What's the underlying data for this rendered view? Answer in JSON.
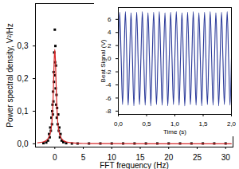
{
  "chart_data": [
    {
      "type": "scatter",
      "x_label": "FFT frequency (Hz)",
      "y_label": "Power spectral density, V²/Hz",
      "xlim": [
        -3.4,
        31.3
      ],
      "ylim": [
        -0.01,
        0.43
      ],
      "xticks": [
        0,
        5,
        10,
        15,
        20,
        25,
        30
      ],
      "yticks": [
        {
          "value": 0,
          "label": "0,0"
        },
        {
          "value": 0.1,
          "label": "0,1"
        },
        {
          "value": 0.2,
          "label": "0,2"
        },
        {
          "value": 0.3,
          "label": "0,3"
        }
      ],
      "series": [
        {
          "type": "scatter",
          "marker": "square",
          "color": "#000000",
          "x": [
            -2,
            -1.5,
            -1.2,
            -1.0,
            -0.9,
            -0.8,
            -0.7,
            -0.6,
            -0.5,
            -0.45,
            -0.4,
            -0.35,
            -0.3,
            -0.25,
            -0.2,
            -0.15,
            -0.1,
            -0.05,
            0,
            0.05,
            0.1,
            0.15,
            0.2,
            0.25,
            0.3,
            0.35,
            0.4,
            0.5,
            0.6,
            0.7,
            0.8,
            0.9,
            1.0,
            1.2,
            1.5,
            2,
            3,
            4,
            6,
            8,
            10,
            12,
            14,
            16,
            18,
            20,
            22,
            24,
            26,
            28,
            30
          ],
          "values": [
            0.002,
            0.004,
            0.01,
            0.03,
            0.02,
            0.05,
            0.04,
            0.08,
            0.06,
            0.1,
            0.12,
            0.09,
            0.16,
            0.13,
            0.22,
            0.19,
            0.28,
            0.21,
            0.35,
            0.25,
            0.3,
            0.17,
            0.24,
            0.12,
            0.15,
            0.08,
            0.11,
            0.06,
            0.09,
            0.04,
            0.05,
            0.02,
            0.03,
            0.01,
            0.005,
            0.002,
            0.001,
            0.001,
            0.001,
            0.001,
            0.001,
            0.001,
            0.001,
            0.001,
            0.001,
            0.001,
            0.001,
            0.001,
            0.001,
            0.001,
            0.001
          ]
        },
        {
          "type": "line",
          "color": "#d62728",
          "x": [
            -3,
            -2,
            -1.5,
            -1,
            -0.7,
            -0.5,
            -0.3,
            -0.2,
            -0.1,
            0,
            0.1,
            0.2,
            0.3,
            0.5,
            0.7,
            1,
            1.5,
            2,
            3,
            5,
            10,
            20,
            31
          ],
          "values": [
            0.003,
            0.006,
            0.01,
            0.022,
            0.04,
            0.07,
            0.14,
            0.2,
            0.26,
            0.29,
            0.26,
            0.2,
            0.14,
            0.07,
            0.04,
            0.022,
            0.01,
            0.006,
            0.003,
            0.001,
            0.0005,
            0.0002,
            0.0001
          ]
        }
      ]
    },
    {
      "type": "line",
      "x_label": "Time (s)",
      "y_label": "Beat Signal (V)",
      "xlim": [
        0,
        2
      ],
      "ylim": [
        -8.5,
        7.8
      ],
      "xticks": [
        {
          "value": 0,
          "label": "0,0"
        },
        {
          "value": 0.5,
          "label": "0,5"
        },
        {
          "value": 1,
          "label": "1,0"
        },
        {
          "value": 1.5,
          "label": "1,5"
        },
        {
          "value": 2,
          "label": "2,0"
        }
      ],
      "yticks": [
        -8,
        -6,
        -4,
        -2,
        0,
        2,
        4,
        6
      ],
      "series": [
        {
          "type": "line",
          "color": "#2b3a9a",
          "x": [
            0,
            0.025,
            0.05,
            0.075,
            0.1,
            0.125,
            0.15,
            0.175,
            0.2,
            0.225,
            0.25,
            0.275,
            0.3,
            0.325,
            0.35,
            0.375,
            0.4,
            0.425,
            0.45,
            0.475,
            0.5,
            0.525,
            0.55,
            0.575,
            0.6,
            0.625,
            0.65,
            0.675,
            0.7,
            0.725,
            0.75,
            0.775,
            0.8,
            0.825,
            0.85,
            0.875,
            0.9,
            0.925,
            0.95,
            0.975,
            1.0,
            1.025,
            1.05,
            1.075,
            1.1,
            1.125,
            1.15,
            1.175,
            1.2,
            1.225,
            1.25,
            1.275,
            1.3,
            1.325,
            1.35,
            1.375,
            1.4,
            1.425,
            1.45,
            1.475,
            1.5,
            1.525,
            1.55,
            1.575,
            1.6,
            1.625,
            1.65,
            1.675,
            1.7,
            1.725,
            1.75,
            1.775,
            1.8,
            1.825,
            1.85,
            1.875,
            1.9,
            1.925,
            1.95,
            1.975,
            2.0
          ],
          "values": [
            0.3,
            7.1,
            0.2,
            -7.0,
            -0.1,
            7.2,
            0.1,
            -7.1,
            0.2,
            7.0,
            0.0,
            -7.2,
            0.1,
            7.1,
            -0.1,
            -7.0,
            0.2,
            7.2,
            0.1,
            -7.1,
            0.0,
            7.0,
            0.2,
            -7.2,
            0.1,
            7.1,
            0.0,
            -7.0,
            -0.1,
            7.2,
            0.2,
            -7.1,
            0.1,
            7.0,
            0.1,
            -7.2,
            0.0,
            7.1,
            -0.1,
            -7.0,
            0.2,
            7.2,
            0.0,
            -7.1,
            0.1,
            7.0,
            0.2,
            -7.2,
            -0.1,
            7.1,
            0.1,
            -7.0,
            0.0,
            7.2,
            0.1,
            -7.1,
            0.2,
            7.0,
            0.0,
            -7.2,
            0.1,
            7.1,
            -0.1,
            -7.0,
            0.2,
            7.2,
            0.1,
            -7.1,
            0.0,
            7.0,
            0.2,
            -7.2,
            0.1,
            7.1,
            0.0,
            -7.0,
            -0.1,
            7.2,
            0.1,
            -7.1,
            0.0
          ]
        }
      ]
    }
  ]
}
